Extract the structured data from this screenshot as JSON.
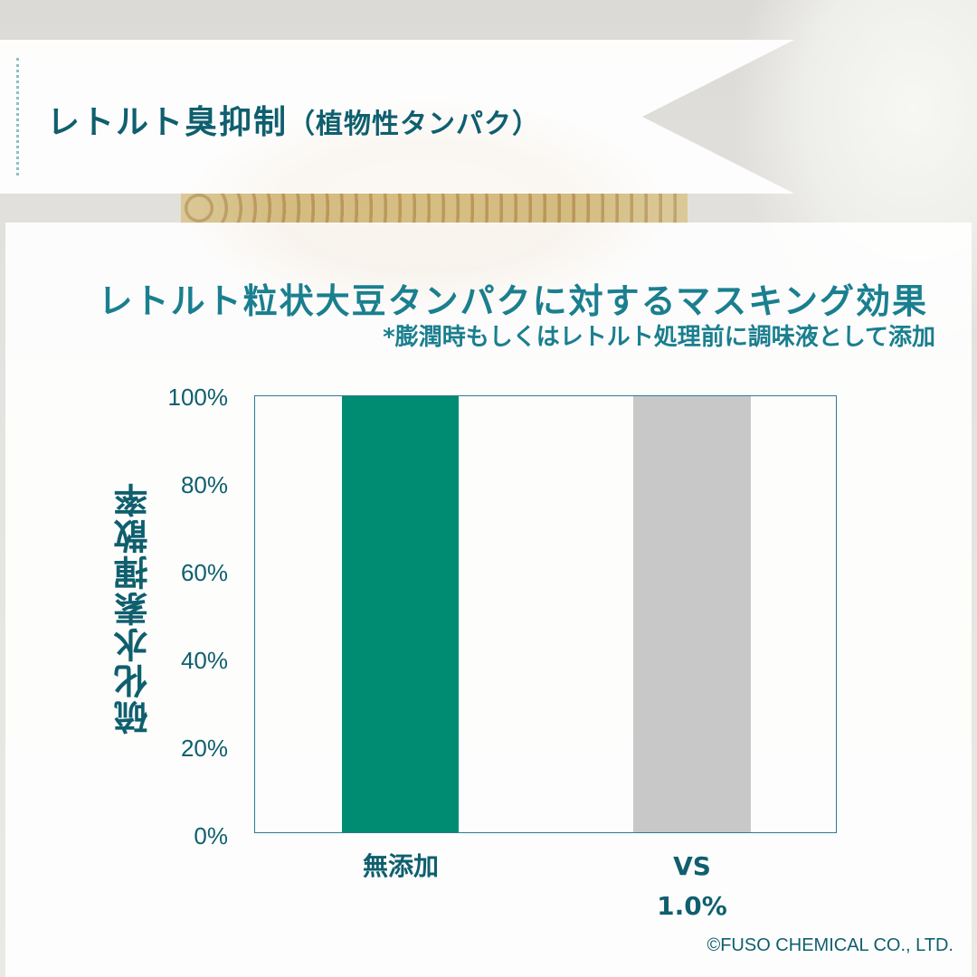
{
  "header": {
    "title": "レトルト臭抑制",
    "title_sub": "（植物性タンパク）"
  },
  "chart_data": {
    "type": "bar",
    "title": "レトルト粒状大豆タンパクに対するマスキング効果",
    "subtitle": "*膨潤時もしくはレトルト処理前に調味液として添加",
    "xlabel": "",
    "ylabel": "硫化水素揮散率",
    "categories": [
      "無添加",
      "VS 1.0%"
    ],
    "values": [
      100,
      100
    ],
    "colors": [
      "#008c73",
      "#c8c8c8"
    ],
    "ylim": [
      0,
      100
    ],
    "yticks": [
      "0%",
      "20%",
      "40%",
      "60%",
      "80%",
      "100%"
    ],
    "grid": false,
    "legend": null
  },
  "labels": {
    "cat0": "無添加",
    "cat1_line1": "VS",
    "cat1_line2": "1.0%"
  },
  "footer": {
    "copyright": "©FUSO CHEMICAL CO., LTD."
  }
}
